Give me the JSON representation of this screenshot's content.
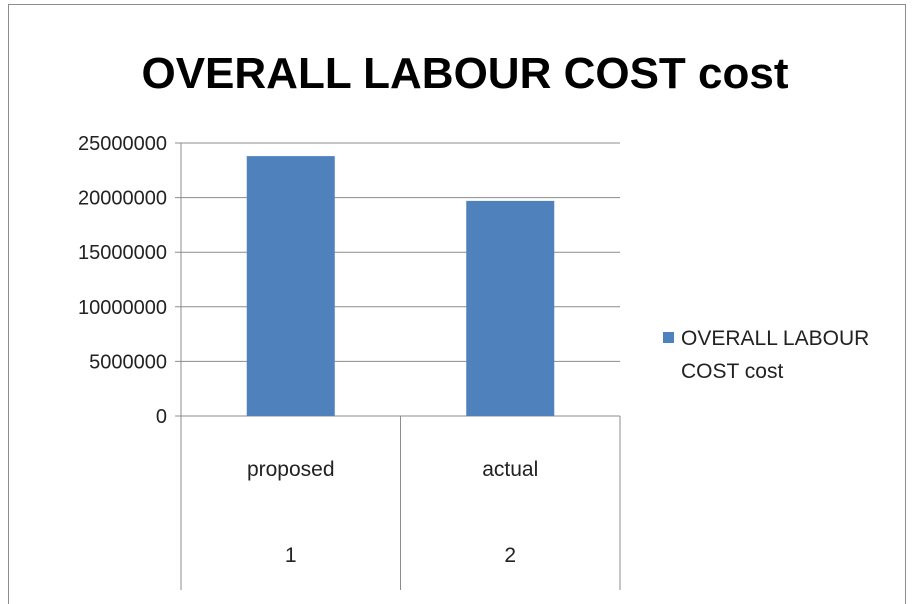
{
  "chart_data": {
    "type": "bar",
    "title": "OVERALL  LABOUR COST cost",
    "categories": [
      "proposed",
      "actual"
    ],
    "category_index_labels": [
      "1",
      "2"
    ],
    "series": [
      {
        "name": "OVERALL  LABOUR COST cost",
        "values": [
          23800000,
          19700000
        ],
        "color": "#4f81bd"
      }
    ],
    "ylim": [
      0,
      25000000
    ],
    "yticks": [
      "0",
      "5000000",
      "10000000",
      "15000000",
      "20000000",
      "25000000"
    ],
    "grid": true,
    "legend": "right",
    "legend_lines": [
      "OVERALL  LABOUR",
      "COST cost"
    ]
  }
}
